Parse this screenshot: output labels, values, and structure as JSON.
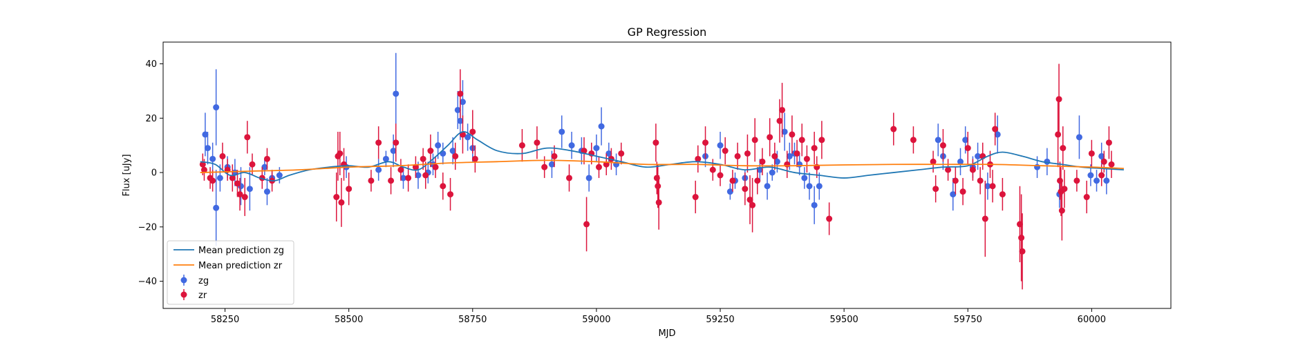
{
  "chart_data": {
    "type": "scatter",
    "title": "GP Regression",
    "xlabel": "MJD",
    "ylabel": "Flux [uJy]",
    "xlim": [
      58125,
      60160
    ],
    "ylim": [
      -50,
      48
    ],
    "xticks": [
      58250,
      58500,
      58750,
      59000,
      59250,
      59500,
      59750,
      60000
    ],
    "yticks": [
      -40,
      -20,
      0,
      20,
      40
    ],
    "legend_position": "lower-left",
    "legend": [
      {
        "label": "Mean prediction zg",
        "kind": "line",
        "color": "#1f77b4"
      },
      {
        "label": "Mean prediction zr",
        "kind": "line",
        "color": "#ff7f0e"
      },
      {
        "label": "zg",
        "kind": "errorbar",
        "color": "#4169e1"
      },
      {
        "label": "zr",
        "kind": "errorbar",
        "color": "#dc143c"
      }
    ],
    "lines": [
      {
        "name": "Mean prediction zg",
        "color": "#1f77b4",
        "x": [
          58200,
          58230,
          58260,
          58290,
          58320,
          58350,
          58380,
          58420,
          58460,
          58500,
          58540,
          58580,
          58610,
          58640,
          58670,
          58700,
          58730,
          58760,
          58800,
          58850,
          58900,
          58950,
          59000,
          59050,
          59100,
          59150,
          59200,
          59250,
          59300,
          59350,
          59400,
          59450,
          59500,
          59550,
          59600,
          59650,
          59700,
          59750,
          59790,
          59820,
          59860,
          59900,
          59940,
          59980,
          60020,
          60065
        ],
        "y": [
          4,
          3,
          -1,
          0,
          -2,
          -3,
          -1,
          1,
          2,
          2.5,
          2,
          4,
          2,
          1,
          5,
          10,
          15,
          12,
          8,
          7,
          9,
          8,
          6,
          4,
          2,
          3,
          4,
          3,
          1,
          2,
          0,
          -1,
          -2,
          -1,
          0,
          1,
          2,
          2.5,
          6,
          7.5,
          6,
          4,
          3,
          2,
          1.5,
          1
        ]
      },
      {
        "name": "Mean prediction zr",
        "color": "#ff7f0e",
        "x": [
          58200,
          58300,
          58400,
          58500,
          58600,
          58700,
          58800,
          58900,
          59000,
          59100,
          59200,
          59300,
          59400,
          59500,
          59600,
          59700,
          59800,
          59900,
          60000,
          60065
        ],
        "y": [
          0,
          0.5,
          1,
          2,
          2.5,
          3.5,
          4,
          4.5,
          4,
          3,
          3,
          2.5,
          2.5,
          2.8,
          3,
          3,
          3,
          2.5,
          2,
          1.5
        ]
      }
    ],
    "series": [
      {
        "name": "zg",
        "color": "#4169e1",
        "points": [
          [
            58210,
            14,
            8
          ],
          [
            58215,
            9,
            6
          ],
          [
            58225,
            5,
            6
          ],
          [
            58232,
            24,
            14
          ],
          [
            58232,
            -13,
            14
          ],
          [
            58240,
            -2,
            5
          ],
          [
            58255,
            2,
            4
          ],
          [
            58270,
            0,
            5
          ],
          [
            58282,
            -5,
            7
          ],
          [
            58300,
            -6,
            8
          ],
          [
            58330,
            2,
            3
          ],
          [
            58335,
            -7,
            5
          ],
          [
            58345,
            -2,
            3
          ],
          [
            58360,
            -1,
            3
          ],
          [
            58495,
            2,
            4
          ],
          [
            58560,
            1,
            4
          ],
          [
            58575,
            5,
            3
          ],
          [
            58590,
            8,
            6
          ],
          [
            58595,
            29,
            15
          ],
          [
            58610,
            -2,
            4
          ],
          [
            58640,
            -1,
            5
          ],
          [
            58660,
            0,
            4
          ],
          [
            58670,
            3,
            4
          ],
          [
            58680,
            10,
            5
          ],
          [
            58690,
            7,
            4
          ],
          [
            58710,
            8,
            5
          ],
          [
            58720,
            23,
            7
          ],
          [
            58725,
            19,
            7
          ],
          [
            58730,
            26,
            8
          ],
          [
            58740,
            13,
            5
          ],
          [
            58750,
            9,
            5
          ],
          [
            58910,
            3,
            5
          ],
          [
            58930,
            15,
            6
          ],
          [
            58950,
            10,
            5
          ],
          [
            58970,
            8,
            5
          ],
          [
            58985,
            -2,
            5
          ],
          [
            59000,
            9,
            5
          ],
          [
            59010,
            17,
            7
          ],
          [
            59025,
            7,
            4
          ],
          [
            59040,
            3,
            4
          ],
          [
            59220,
            6,
            4
          ],
          [
            59250,
            10,
            5
          ],
          [
            59270,
            -7,
            3
          ],
          [
            59280,
            -3,
            3
          ],
          [
            59300,
            -2,
            3
          ],
          [
            59330,
            1,
            4
          ],
          [
            59345,
            -5,
            5
          ],
          [
            59355,
            0,
            3
          ],
          [
            59365,
            4,
            4
          ],
          [
            59380,
            15,
            7
          ],
          [
            59390,
            6,
            5
          ],
          [
            59400,
            7,
            4
          ],
          [
            59410,
            3,
            4
          ],
          [
            59420,
            -2,
            4
          ],
          [
            59430,
            -5,
            5
          ],
          [
            59440,
            -12,
            7
          ],
          [
            59450,
            -5,
            5
          ],
          [
            59690,
            12,
            6
          ],
          [
            59700,
            6,
            5
          ],
          [
            59720,
            -8,
            6
          ],
          [
            59735,
            4,
            5
          ],
          [
            59745,
            12,
            5
          ],
          [
            59760,
            2,
            4
          ],
          [
            59770,
            6,
            5
          ],
          [
            59790,
            -5,
            5
          ],
          [
            59810,
            14,
            7
          ],
          [
            59890,
            2,
            4
          ],
          [
            59910,
            4,
            5
          ],
          [
            59935,
            -8,
            5
          ],
          [
            59975,
            13,
            8
          ],
          [
            59998,
            -1,
            4
          ],
          [
            60010,
            -3,
            4
          ],
          [
            60020,
            6,
            5
          ],
          [
            60030,
            -3,
            5
          ]
        ]
      },
      {
        "name": "zr",
        "color": "#dc143c",
        "points": [
          [
            58205,
            3,
            4
          ],
          [
            58208,
            1,
            4
          ],
          [
            58220,
            -2,
            4
          ],
          [
            58225,
            -3,
            4
          ],
          [
            58245,
            6,
            5
          ],
          [
            58255,
            1,
            4
          ],
          [
            58265,
            -2,
            5
          ],
          [
            58275,
            -4,
            5
          ],
          [
            58280,
            -8,
            6
          ],
          [
            58290,
            -9,
            7
          ],
          [
            58295,
            13,
            6
          ],
          [
            58305,
            3,
            4
          ],
          [
            58325,
            -2,
            4
          ],
          [
            58335,
            5,
            4
          ],
          [
            58345,
            -3,
            4
          ],
          [
            58475,
            -9,
            9
          ],
          [
            58478,
            6,
            9
          ],
          [
            58482,
            7,
            8
          ],
          [
            58485,
            -11,
            9
          ],
          [
            58490,
            3,
            6
          ],
          [
            58500,
            -6,
            6
          ],
          [
            58545,
            -3,
            4
          ],
          [
            58560,
            11,
            6
          ],
          [
            58585,
            -3,
            5
          ],
          [
            58595,
            11,
            7
          ],
          [
            58605,
            1,
            4
          ],
          [
            58620,
            -2,
            5
          ],
          [
            58635,
            2,
            4
          ],
          [
            58650,
            5,
            4
          ],
          [
            58655,
            -1,
            5
          ],
          [
            58665,
            8,
            6
          ],
          [
            58675,
            2,
            4
          ],
          [
            58690,
            -5,
            5
          ],
          [
            58705,
            -8,
            6
          ],
          [
            58715,
            6,
            5
          ],
          [
            58725,
            29,
            9
          ],
          [
            58730,
            14,
            7
          ],
          [
            58750,
            15,
            8
          ],
          [
            58755,
            5,
            5
          ],
          [
            58850,
            10,
            6
          ],
          [
            58880,
            11,
            6
          ],
          [
            58895,
            2,
            4
          ],
          [
            58915,
            6,
            4
          ],
          [
            58945,
            -2,
            5
          ],
          [
            58975,
            8,
            5
          ],
          [
            58980,
            -19,
            10
          ],
          [
            58990,
            7,
            4
          ],
          [
            59005,
            2,
            4
          ],
          [
            59020,
            3,
            4
          ],
          [
            59030,
            5,
            4
          ],
          [
            59050,
            7,
            4
          ],
          [
            59120,
            11,
            7
          ],
          [
            59122,
            -2,
            6
          ],
          [
            59124,
            -5,
            8
          ],
          [
            59126,
            -11,
            10
          ],
          [
            59200,
            -9,
            6
          ],
          [
            59205,
            5,
            5
          ],
          [
            59220,
            11,
            6
          ],
          [
            59235,
            1,
            4
          ],
          [
            59250,
            -1,
            4
          ],
          [
            59260,
            8,
            5
          ],
          [
            59275,
            -3,
            4
          ],
          [
            59285,
            6,
            5
          ],
          [
            59300,
            -6,
            6
          ],
          [
            59305,
            7,
            7
          ],
          [
            59310,
            -10,
            9
          ],
          [
            59315,
            -12,
            10
          ],
          [
            59320,
            12,
            8
          ],
          [
            59325,
            -3,
            5
          ],
          [
            59335,
            4,
            5
          ],
          [
            59350,
            13,
            7
          ],
          [
            59360,
            6,
            5
          ],
          [
            59370,
            19,
            8
          ],
          [
            59375,
            23,
            10
          ],
          [
            59385,
            3,
            5
          ],
          [
            59395,
            14,
            7
          ],
          [
            59405,
            7,
            5
          ],
          [
            59415,
            12,
            6
          ],
          [
            59425,
            5,
            5
          ],
          [
            59440,
            9,
            6
          ],
          [
            59445,
            2,
            4
          ],
          [
            59455,
            12,
            7
          ],
          [
            59470,
            -17,
            6
          ],
          [
            59600,
            16,
            6
          ],
          [
            59640,
            12,
            5
          ],
          [
            59680,
            4,
            4
          ],
          [
            59685,
            -6,
            5
          ],
          [
            59700,
            10,
            6
          ],
          [
            59710,
            1,
            4
          ],
          [
            59725,
            -3,
            5
          ],
          [
            59740,
            -7,
            5
          ],
          [
            59750,
            9,
            6
          ],
          [
            59760,
            1,
            4
          ],
          [
            59775,
            -3,
            5
          ],
          [
            59780,
            6,
            5
          ],
          [
            59785,
            -17,
            14
          ],
          [
            59795,
            3,
            5
          ],
          [
            59800,
            -5,
            6
          ],
          [
            59805,
            16,
            6
          ],
          [
            59820,
            -8,
            6
          ],
          [
            59855,
            -19,
            14
          ],
          [
            59858,
            -24,
            16
          ],
          [
            59860,
            -29,
            14
          ],
          [
            59932,
            14,
            12
          ],
          [
            59934,
            27,
            13
          ],
          [
            59936,
            -3,
            7
          ],
          [
            59938,
            -7,
            9
          ],
          [
            59940,
            -14,
            11
          ],
          [
            59942,
            9,
            8
          ],
          [
            59945,
            -6,
            7
          ],
          [
            59970,
            -3,
            4
          ],
          [
            59990,
            -9,
            6
          ],
          [
            60000,
            7,
            5
          ],
          [
            60020,
            -1,
            4
          ],
          [
            60025,
            4,
            4
          ],
          [
            60035,
            11,
            6
          ],
          [
            60040,
            3,
            5
          ]
        ]
      }
    ]
  }
}
